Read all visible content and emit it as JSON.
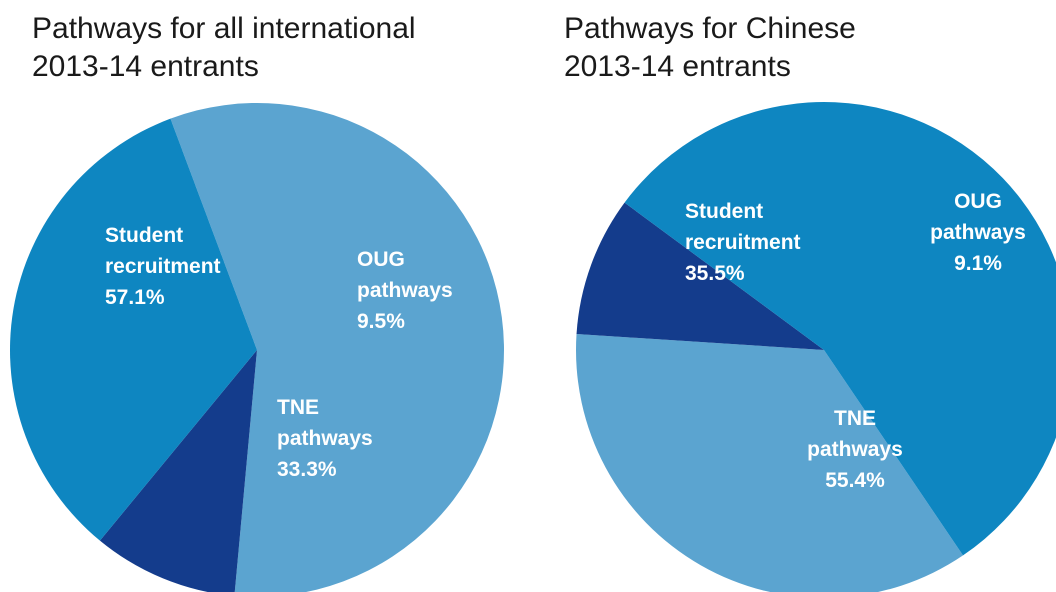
{
  "chart_data": [
    {
      "type": "pie",
      "title_lines": [
        "Pathways for all international",
        "2013-14 entrants"
      ],
      "slices": [
        {
          "label_lines": [
            "Student",
            "recruitment",
            "57.1%"
          ],
          "value": 57.1,
          "color": "#5ba4d0"
        },
        {
          "label_lines": [
            "OUG",
            "pathways",
            "9.5%"
          ],
          "value": 9.5,
          "color": "#143c8c"
        },
        {
          "label_lines": [
            "TNE",
            "pathways",
            "33.3%"
          ],
          "value": 33.3,
          "color": "#0e86c1"
        }
      ]
    },
    {
      "type": "pie",
      "title_lines": [
        "Pathways for Chinese",
        "2013-14 entrants"
      ],
      "slices": [
        {
          "label_lines": [
            "Student",
            "recruitment",
            "35.5%"
          ],
          "value": 35.5,
          "color": "#5ba4d0"
        },
        {
          "label_lines": [
            "OUG",
            "pathways",
            "9.1%"
          ],
          "value": 9.1,
          "color": "#143c8c"
        },
        {
          "label_lines": [
            "TNE",
            "pathways",
            "55.4%"
          ],
          "value": 55.4,
          "color": "#0e86c1"
        }
      ]
    }
  ]
}
